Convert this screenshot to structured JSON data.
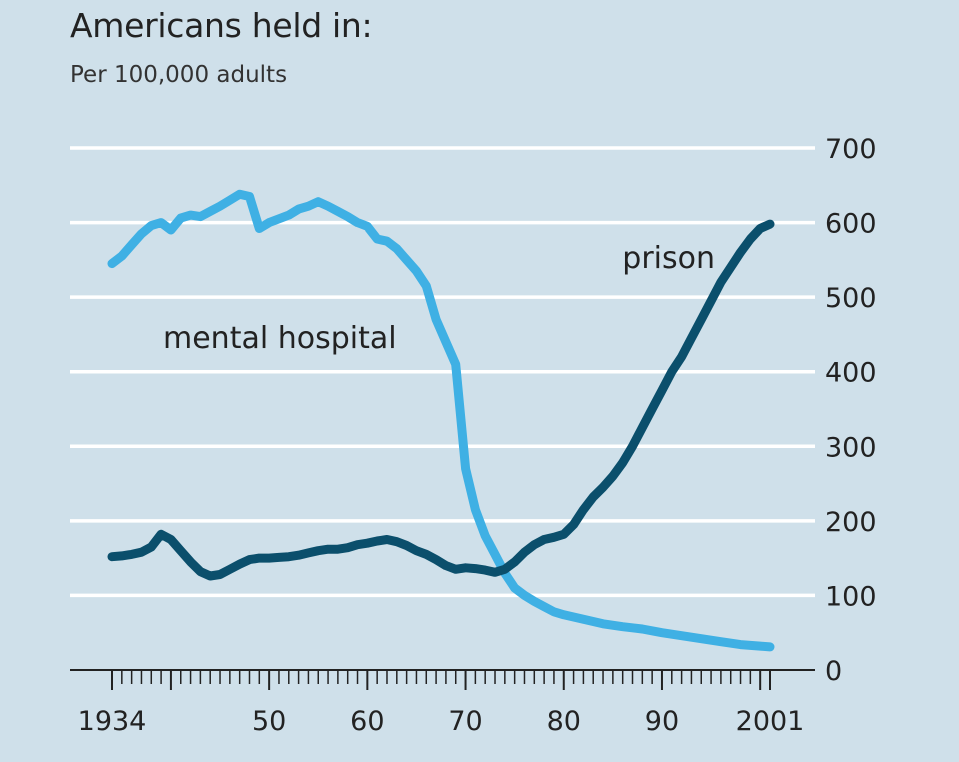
{
  "chart_data": {
    "type": "line",
    "title": "Americans held in:",
    "subtitle": "Per 100,000 adults",
    "xlabel": "",
    "ylabel": "",
    "xlim": [
      1934,
      2001
    ],
    "ylim": [
      0,
      700
    ],
    "x_tick_labels": [
      {
        "x": 1934,
        "label": "1934"
      },
      {
        "x": 1950,
        "label": "50"
      },
      {
        "x": 1960,
        "label": "60"
      },
      {
        "x": 1970,
        "label": "70"
      },
      {
        "x": 1980,
        "label": "80"
      },
      {
        "x": 1990,
        "label": "90"
      },
      {
        "x": 2001,
        "label": "2001"
      }
    ],
    "y_ticks": [
      0,
      100,
      200,
      300,
      400,
      500,
      600,
      700
    ],
    "grid": "horizontal",
    "y_axis_side": "right",
    "series": [
      {
        "name": "mental hospital",
        "color": "#3fb0e4",
        "label_position": "left-middle",
        "points": [
          [
            1934,
            545
          ],
          [
            1935,
            555
          ],
          [
            1936,
            570
          ],
          [
            1937,
            585
          ],
          [
            1938,
            596
          ],
          [
            1939,
            600
          ],
          [
            1940,
            590
          ],
          [
            1941,
            606
          ],
          [
            1942,
            610
          ],
          [
            1943,
            608
          ],
          [
            1944,
            615
          ],
          [
            1945,
            622
          ],
          [
            1946,
            630
          ],
          [
            1947,
            638
          ],
          [
            1948,
            635
          ],
          [
            1949,
            592
          ],
          [
            1950,
            600
          ],
          [
            1951,
            605
          ],
          [
            1952,
            610
          ],
          [
            1953,
            618
          ],
          [
            1954,
            622
          ],
          [
            1955,
            628
          ],
          [
            1956,
            622
          ],
          [
            1957,
            615
          ],
          [
            1958,
            608
          ],
          [
            1959,
            600
          ],
          [
            1960,
            595
          ],
          [
            1961,
            578
          ],
          [
            1962,
            575
          ],
          [
            1963,
            565
          ],
          [
            1964,
            550
          ],
          [
            1965,
            535
          ],
          [
            1966,
            515
          ],
          [
            1967,
            470
          ],
          [
            1968,
            440
          ],
          [
            1969,
            410
          ],
          [
            1970,
            270
          ],
          [
            1971,
            215
          ],
          [
            1972,
            180
          ],
          [
            1973,
            155
          ],
          [
            1974,
            130
          ],
          [
            1975,
            110
          ],
          [
            1976,
            100
          ],
          [
            1977,
            92
          ],
          [
            1978,
            85
          ],
          [
            1979,
            78
          ],
          [
            1980,
            74
          ],
          [
            1982,
            68
          ],
          [
            1984,
            62
          ],
          [
            1986,
            58
          ],
          [
            1988,
            55
          ],
          [
            1990,
            50
          ],
          [
            1992,
            46
          ],
          [
            1994,
            42
          ],
          [
            1996,
            38
          ],
          [
            1998,
            34
          ],
          [
            2000,
            32
          ],
          [
            2001,
            31
          ]
        ]
      },
      {
        "name": "prison",
        "color": "#0b4f6c",
        "label_position": "upper-right",
        "points": [
          [
            1934,
            152
          ],
          [
            1935,
            153
          ],
          [
            1936,
            155
          ],
          [
            1937,
            158
          ],
          [
            1938,
            165
          ],
          [
            1939,
            182
          ],
          [
            1940,
            175
          ],
          [
            1941,
            160
          ],
          [
            1942,
            145
          ],
          [
            1943,
            132
          ],
          [
            1944,
            126
          ],
          [
            1945,
            128
          ],
          [
            1946,
            135
          ],
          [
            1947,
            142
          ],
          [
            1948,
            148
          ],
          [
            1949,
            150
          ],
          [
            1950,
            150
          ],
          [
            1951,
            151
          ],
          [
            1952,
            152
          ],
          [
            1953,
            154
          ],
          [
            1954,
            157
          ],
          [
            1955,
            160
          ],
          [
            1956,
            162
          ],
          [
            1957,
            162
          ],
          [
            1958,
            164
          ],
          [
            1959,
            168
          ],
          [
            1960,
            170
          ],
          [
            1961,
            173
          ],
          [
            1962,
            175
          ],
          [
            1963,
            172
          ],
          [
            1964,
            167
          ],
          [
            1965,
            160
          ],
          [
            1966,
            155
          ],
          [
            1967,
            148
          ],
          [
            1968,
            140
          ],
          [
            1969,
            135
          ],
          [
            1970,
            137
          ],
          [
            1971,
            136
          ],
          [
            1972,
            134
          ],
          [
            1973,
            131
          ],
          [
            1974,
            135
          ],
          [
            1975,
            145
          ],
          [
            1976,
            158
          ],
          [
            1977,
            168
          ],
          [
            1978,
            175
          ],
          [
            1979,
            178
          ],
          [
            1980,
            182
          ],
          [
            1981,
            195
          ],
          [
            1982,
            215
          ],
          [
            1983,
            232
          ],
          [
            1984,
            245
          ],
          [
            1985,
            260
          ],
          [
            1986,
            278
          ],
          [
            1987,
            300
          ],
          [
            1988,
            325
          ],
          [
            1989,
            350
          ],
          [
            1990,
            375
          ],
          [
            1991,
            400
          ],
          [
            1992,
            420
          ],
          [
            1993,
            445
          ],
          [
            1994,
            470
          ],
          [
            1995,
            495
          ],
          [
            1996,
            520
          ],
          [
            1997,
            540
          ],
          [
            1998,
            560
          ],
          [
            1999,
            578
          ],
          [
            2000,
            592
          ],
          [
            2001,
            598
          ]
        ]
      }
    ]
  }
}
